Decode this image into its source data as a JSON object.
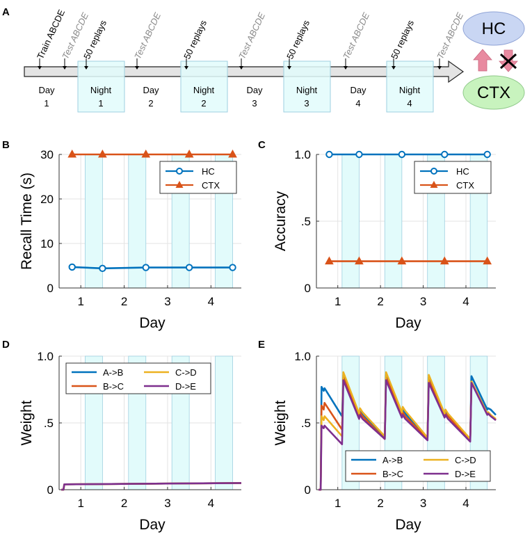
{
  "panels": {
    "A": "A",
    "B": "B",
    "C": "C",
    "D": "D",
    "E": "E"
  },
  "timeline": {
    "days": [
      {
        "label": "Day",
        "num": "1"
      },
      {
        "label": "Day",
        "num": "2"
      },
      {
        "label": "Day",
        "num": "3"
      },
      {
        "label": "Day",
        "num": "4"
      }
    ],
    "nights": [
      {
        "label": "Night",
        "num": "1"
      },
      {
        "label": "Night",
        "num": "2"
      },
      {
        "label": "Night",
        "num": "3"
      },
      {
        "label": "Night",
        "num": "4"
      }
    ],
    "events": [
      {
        "text": "Train ABCDE",
        "kind": "train"
      },
      {
        "text": "Test ABCDE",
        "kind": "test"
      },
      {
        "text": "50 replays",
        "kind": "replay"
      },
      {
        "text": "Test ABCDE",
        "kind": "test"
      },
      {
        "text": "50 replays",
        "kind": "replay"
      },
      {
        "text": "Test ABCDE",
        "kind": "test"
      },
      {
        "text": "50 replays",
        "kind": "replay"
      },
      {
        "text": "Test ABCDE",
        "kind": "test"
      },
      {
        "text": "50 replays",
        "kind": "replay"
      },
      {
        "text": "Test ABCDE",
        "kind": "test"
      }
    ],
    "hc_label": "HC",
    "ctx_label": "CTX"
  },
  "colors": {
    "blue": "#0072BD",
    "orange": "#D95319",
    "yellow": "#EDB120",
    "purple": "#7E2F8E",
    "night_fill": "#E2FBFB",
    "night_stroke": "#9ECFE0",
    "grey_text": "#8a8a8a",
    "hc_fill": "#C9D6F3",
    "ctx_fill": "#C8F3BE",
    "arrow_pink": "#E88AA0"
  },
  "chart_data": [
    {
      "panel": "B",
      "type": "line",
      "xlabel": "Day",
      "ylabel": "Recall Time (s)",
      "xlim": [
        0.5,
        4.7
      ],
      "ylim": [
        0,
        30
      ],
      "xticks": [
        "1",
        "2",
        "3",
        "4"
      ],
      "yticks": [
        "0",
        "10",
        "20",
        "30"
      ],
      "ytick_values": [
        0,
        10,
        20,
        30
      ],
      "night_bands": [
        [
          1.1,
          1.5
        ],
        [
          2.1,
          2.5
        ],
        [
          3.1,
          3.5
        ],
        [
          4.1,
          4.5
        ]
      ],
      "legend": "top-right",
      "series": [
        {
          "name": "HC",
          "marker": "circle",
          "color": "#0072BD",
          "x": [
            0.8,
            1.5,
            2.5,
            3.5,
            4.5
          ],
          "y": [
            4.7,
            4.4,
            4.6,
            4.6,
            4.6
          ]
        },
        {
          "name": "CTX",
          "marker": "triangle",
          "color": "#D95319",
          "x": [
            0.8,
            1.5,
            2.5,
            3.5,
            4.5
          ],
          "y": [
            30,
            30,
            30,
            30,
            30
          ]
        }
      ]
    },
    {
      "panel": "C",
      "type": "line",
      "xlabel": "Day",
      "ylabel": "Accuracy",
      "xlim": [
        0.5,
        4.7
      ],
      "ylim": [
        0,
        1
      ],
      "xticks": [
        "1",
        "2",
        "3",
        "4"
      ],
      "yticks": [
        "0",
        ".5",
        "1.0"
      ],
      "ytick_values": [
        0,
        0.5,
        1.0
      ],
      "night_bands": [
        [
          1.1,
          1.5
        ],
        [
          2.1,
          2.5
        ],
        [
          3.1,
          3.5
        ],
        [
          4.1,
          4.5
        ]
      ],
      "legend": "top-right",
      "series": [
        {
          "name": "HC",
          "marker": "circle",
          "color": "#0072BD",
          "x": [
            0.8,
            1.5,
            2.5,
            3.5,
            4.5
          ],
          "y": [
            1,
            1,
            1,
            1,
            1
          ]
        },
        {
          "name": "CTX",
          "marker": "triangle",
          "color": "#D95319",
          "x": [
            0.8,
            1.5,
            2.5,
            3.5,
            4.5
          ],
          "y": [
            0.2,
            0.2,
            0.2,
            0.2,
            0.2
          ]
        }
      ]
    },
    {
      "panel": "D",
      "type": "line",
      "xlabel": "Day",
      "ylabel": "Weight",
      "xlim": [
        0.5,
        4.7
      ],
      "ylim": [
        0,
        1
      ],
      "xticks": [
        "1",
        "2",
        "3",
        "4"
      ],
      "yticks": [
        "0",
        ".5",
        "1.0"
      ],
      "ytick_values": [
        0,
        0.5,
        1.0
      ],
      "night_bands": [
        [
          1.1,
          1.5
        ],
        [
          2.1,
          2.5
        ],
        [
          3.1,
          3.5
        ],
        [
          4.1,
          4.5
        ]
      ],
      "legend": "top-left",
      "series": [
        {
          "name": "A->B",
          "color": "#0072BD",
          "x": [
            0.55,
            0.6,
            0.62,
            4.7
          ],
          "y": [
            0,
            0,
            0.04,
            0.05
          ]
        },
        {
          "name": "B->C",
          "color": "#D95319",
          "x": [
            0.55,
            0.6,
            0.62,
            4.7
          ],
          "y": [
            0,
            0,
            0.04,
            0.05
          ]
        },
        {
          "name": "C->D",
          "color": "#EDB120",
          "x": [
            0.55,
            0.6,
            0.62,
            4.7
          ],
          "y": [
            0,
            0,
            0.04,
            0.05
          ]
        },
        {
          "name": "D->E",
          "color": "#7E2F8E",
          "x": [
            0.55,
            0.6,
            0.62,
            4.7
          ],
          "y": [
            0,
            0,
            0.04,
            0.05
          ]
        }
      ]
    },
    {
      "panel": "E",
      "type": "line",
      "xlabel": "Day",
      "ylabel": "Weight",
      "xlim": [
        0.5,
        4.7
      ],
      "ylim": [
        0,
        1
      ],
      "xticks": [
        "1",
        "2",
        "3",
        "4"
      ],
      "yticks": [
        "0",
        ".5",
        "1.0"
      ],
      "ytick_values": [
        0,
        0.5,
        1.0
      ],
      "night_bands": [
        [
          1.1,
          1.5
        ],
        [
          2.1,
          2.5
        ],
        [
          3.1,
          3.5
        ],
        [
          4.1,
          4.5
        ]
      ],
      "legend": "bottom-right",
      "series": [
        {
          "name": "A->B",
          "color": "#0072BD",
          "x": [
            0.55,
            0.6,
            0.62,
            0.67,
            0.69,
            1.1,
            1.13,
            1.5,
            1.52,
            1.58,
            2.1,
            2.13,
            2.5,
            2.52,
            2.58,
            3.1,
            3.13,
            3.5,
            3.52,
            3.58,
            4.1,
            4.13,
            4.5,
            4.52,
            4.58,
            4.7
          ],
          "y": [
            0,
            0,
            0.77,
            0.74,
            0.76,
            0.55,
            0.86,
            0.56,
            0.59,
            0.56,
            0.39,
            0.86,
            0.57,
            0.6,
            0.57,
            0.39,
            0.84,
            0.57,
            0.59,
            0.56,
            0.38,
            0.85,
            0.6,
            0.61,
            0.6,
            0.56
          ]
        },
        {
          "name": "B->C",
          "color": "#D95319",
          "x": [
            0.55,
            0.6,
            0.62,
            0.67,
            0.69,
            1.1,
            1.13,
            1.5,
            1.52,
            1.58,
            2.1,
            2.13,
            2.5,
            2.52,
            2.58,
            3.1,
            3.13,
            3.5,
            3.52,
            3.58,
            4.1,
            4.13,
            4.5,
            4.52,
            4.58,
            4.7
          ],
          "y": [
            0,
            0,
            0.63,
            0.6,
            0.65,
            0.45,
            0.84,
            0.55,
            0.58,
            0.55,
            0.38,
            0.84,
            0.56,
            0.58,
            0.55,
            0.38,
            0.82,
            0.56,
            0.57,
            0.55,
            0.37,
            0.81,
            0.57,
            0.58,
            0.56,
            0.52
          ]
        },
        {
          "name": "C->D",
          "color": "#EDB120",
          "x": [
            0.55,
            0.6,
            0.62,
            0.67,
            0.69,
            1.1,
            1.13,
            1.5,
            1.52,
            1.58,
            2.1,
            2.13,
            2.5,
            2.52,
            2.58,
            3.1,
            3.13,
            3.5,
            3.52,
            3.58,
            4.1,
            4.13,
            4.5,
            4.52,
            4.58,
            4.7
          ],
          "y": [
            0,
            0,
            0.55,
            0.52,
            0.55,
            0.4,
            0.88,
            0.57,
            0.61,
            0.58,
            0.4,
            0.88,
            0.58,
            0.62,
            0.59,
            0.39,
            0.86,
            0.57,
            0.6,
            0.57,
            0.38,
            0.81,
            0.57,
            0.58,
            0.56,
            0.53
          ]
        },
        {
          "name": "D->E",
          "color": "#7E2F8E",
          "x": [
            0.55,
            0.6,
            0.62,
            0.67,
            0.69,
            1.1,
            1.13,
            1.5,
            1.52,
            1.58,
            2.1,
            2.13,
            2.5,
            2.52,
            2.58,
            3.1,
            3.13,
            3.5,
            3.52,
            3.58,
            4.1,
            4.13,
            4.5,
            4.52,
            4.58,
            4.7
          ],
          "y": [
            0,
            0,
            0.48,
            0.46,
            0.48,
            0.34,
            0.82,
            0.53,
            0.56,
            0.53,
            0.38,
            0.82,
            0.54,
            0.56,
            0.53,
            0.37,
            0.8,
            0.54,
            0.56,
            0.53,
            0.36,
            0.8,
            0.56,
            0.57,
            0.55,
            0.52
          ]
        }
      ]
    }
  ]
}
